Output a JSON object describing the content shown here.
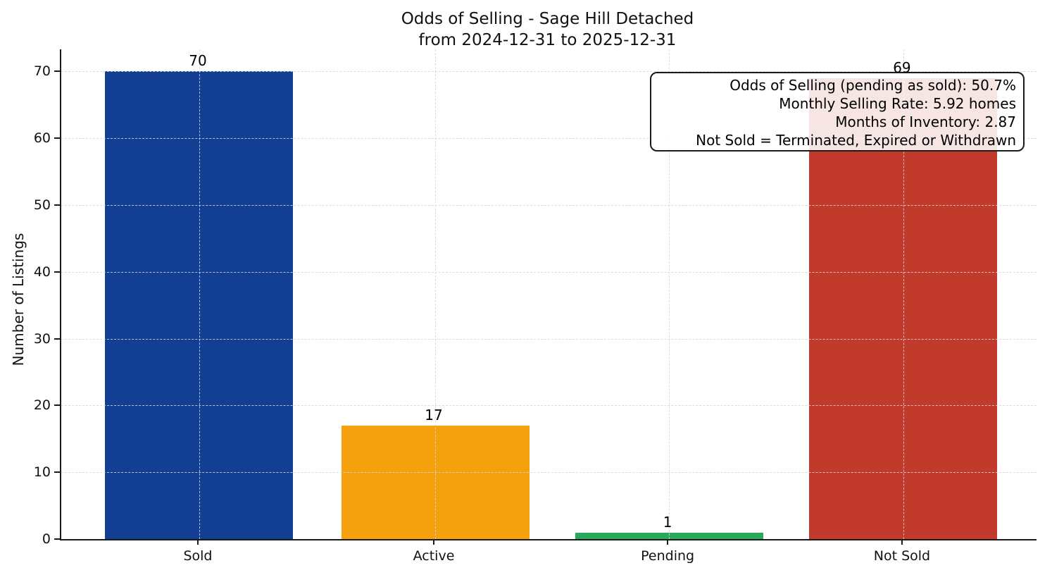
{
  "chart_data": {
    "type": "bar",
    "title": "Odds of Selling - Sage Hill Detached",
    "subtitle": "from 2024-12-31 to 2025-12-31",
    "ylabel": "Number of Listings",
    "xlabel": "",
    "categories": [
      "Sold",
      "Active",
      "Pending",
      "Not Sold"
    ],
    "values": [
      70,
      17,
      1,
      69
    ],
    "bar_value_labels": [
      "70",
      "17",
      "1",
      "69"
    ],
    "bar_colors": [
      "#123e94",
      "#f5a10e",
      "#28a95c",
      "#c23a2b"
    ],
    "yticks": [
      0,
      10,
      20,
      30,
      40,
      50,
      60,
      70
    ],
    "ylim": [
      0,
      73.3
    ],
    "grid": "dashed light-gray gridlines, horizontal and vertical, drawn over bars",
    "legend": "none",
    "annotation": {
      "lines": [
        "Odds of Selling (pending as sold): 50.7%",
        "Monthly Selling Rate: 5.92 homes",
        "Months of Inventory: 2.87",
        "Not Sold = Terminated, Expired or Withdrawn"
      ]
    },
    "colors": {
      "axis": "#1a1a1a",
      "text": "#111111",
      "gridline": "#d6d6d6",
      "background": "#ffffff"
    }
  }
}
